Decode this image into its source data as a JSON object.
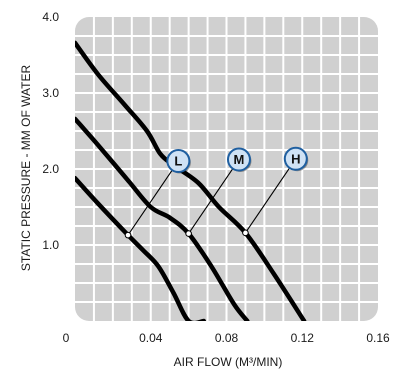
{
  "chart_data": {
    "type": "line",
    "xlabel": "AIR FLOW (M³/MIN)",
    "ylabel": "STATIC PRESSURE - MM OF WATER",
    "xlim": [
      0,
      0.16
    ],
    "ylim": [
      0,
      4.0
    ],
    "x_ticks": [
      "0",
      "0.04",
      "0.08",
      "0.12",
      "0.16"
    ],
    "y_ticks": [
      "1.0",
      "2.0",
      "3.0",
      "4.0"
    ],
    "grid": true,
    "series": [
      {
        "name": "L",
        "x": [
          0,
          0.012,
          0.028,
          0.036,
          0.044,
          0.052,
          0.06,
          0.068
        ],
        "y": [
          1.88,
          1.55,
          1.13,
          0.93,
          0.72,
          0.37,
          0.0,
          0.0
        ],
        "marker": {
          "x": 0.028,
          "y": 1.13
        }
      },
      {
        "name": "M",
        "x": [
          0,
          0.012,
          0.028,
          0.04,
          0.05,
          0.06,
          0.072,
          0.084,
          0.091
        ],
        "y": [
          2.66,
          2.32,
          1.85,
          1.5,
          1.36,
          1.15,
          0.72,
          0.22,
          0.0
        ],
        "marker": {
          "x": 0.06,
          "y": 1.15
        }
      },
      {
        "name": "H",
        "x": [
          0,
          0.012,
          0.026,
          0.038,
          0.045,
          0.052,
          0.065,
          0.076,
          0.09,
          0.105,
          0.121
        ],
        "y": [
          3.66,
          3.25,
          2.85,
          2.5,
          2.2,
          2.05,
          1.82,
          1.5,
          1.16,
          0.62,
          0.0
        ],
        "marker": {
          "x": 0.09,
          "y": 1.16
        }
      }
    ]
  },
  "colors": {
    "plot_bg": "#d0d0d0",
    "grid": "#ffffff",
    "curve": "#000000",
    "badge_fill": "#cfe2f5",
    "badge_stroke": "#1f5fa0"
  }
}
